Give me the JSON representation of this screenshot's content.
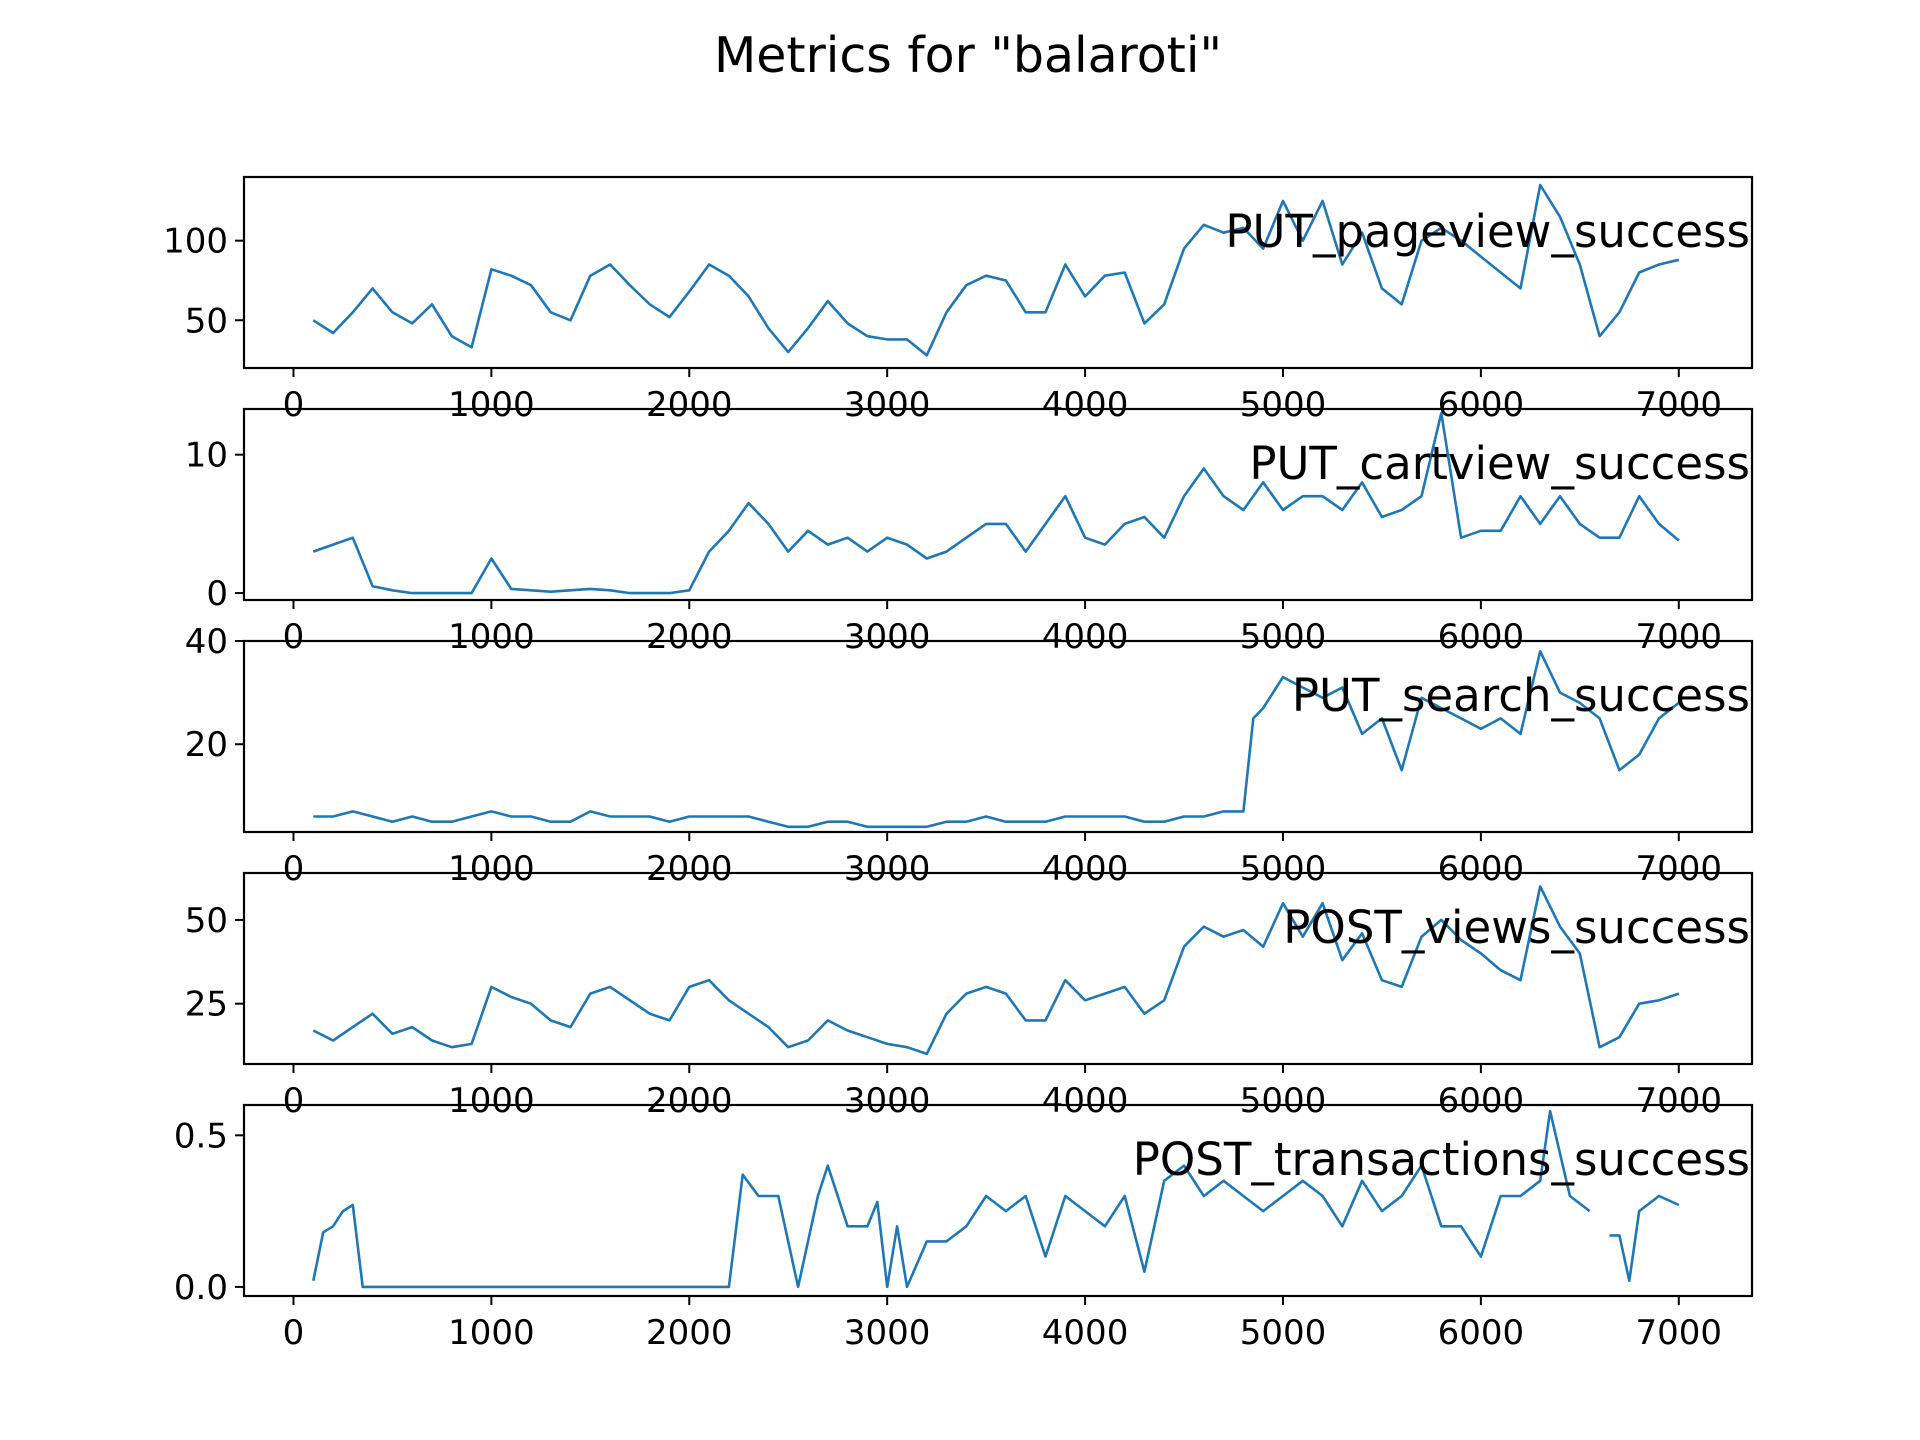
{
  "chart_data": {
    "type": "line",
    "title": "Metrics for \"balaroti\"",
    "line_color": "#1f77b4",
    "xlim": [
      -250,
      7370
    ],
    "xticks": [
      0,
      1000,
      2000,
      3000,
      4000,
      5000,
      6000,
      7000
    ],
    "xtick_labels": [
      "0",
      "1000",
      "2000",
      "3000",
      "4000",
      "5000",
      "6000",
      "7000"
    ],
    "legend_placement": "top-right inside each panel",
    "grid": false,
    "panels": [
      {
        "label": "PUT_pageview_success",
        "ylim": [
          20,
          140
        ],
        "yticks": [
          50,
          100
        ],
        "ytick_labels": [
          "50",
          "100"
        ],
        "x": [
          100,
          200,
          300,
          400,
          500,
          600,
          700,
          800,
          900,
          1000,
          1100,
          1200,
          1300,
          1400,
          1500,
          1600,
          1700,
          1800,
          1900,
          2000,
          2100,
          2200,
          2300,
          2400,
          2500,
          2600,
          2700,
          2800,
          2900,
          3000,
          3100,
          3200,
          3300,
          3400,
          3500,
          3600,
          3700,
          3800,
          3900,
          4000,
          4100,
          4200,
          4300,
          4400,
          4500,
          4600,
          4700,
          4800,
          4900,
          5000,
          5100,
          5200,
          5300,
          5400,
          5500,
          5600,
          5700,
          5800,
          5900,
          6000,
          6100,
          6200,
          6300,
          6400,
          6500,
          6600,
          6700,
          6800,
          6900,
          7000
        ],
        "y": [
          50,
          42,
          55,
          70,
          55,
          48,
          60,
          40,
          33,
          82,
          78,
          72,
          55,
          50,
          78,
          85,
          72,
          60,
          52,
          68,
          85,
          78,
          65,
          45,
          30,
          45,
          62,
          48,
          40,
          38,
          38,
          28,
          55,
          72,
          78,
          75,
          55,
          55,
          85,
          65,
          78,
          80,
          48,
          60,
          95,
          110,
          105,
          108,
          95,
          125,
          100,
          125,
          85,
          105,
          70,
          60,
          100,
          108,
          100,
          90,
          80,
          70,
          135,
          115,
          85,
          40,
          55,
          80,
          85,
          88
        ]
      },
      {
        "label": "PUT_cartview_success",
        "ylim": [
          -0.5,
          13.3
        ],
        "yticks": [
          0,
          10
        ],
        "ytick_labels": [
          "0",
          "10"
        ],
        "x": [
          100,
          200,
          300,
          400,
          500,
          600,
          700,
          800,
          900,
          1000,
          1100,
          1200,
          1300,
          1400,
          1500,
          1600,
          1700,
          1800,
          1900,
          2000,
          2100,
          2200,
          2300,
          2400,
          2500,
          2600,
          2700,
          2800,
          2900,
          3000,
          3100,
          3200,
          3300,
          3400,
          3500,
          3600,
          3700,
          3800,
          3900,
          4000,
          4100,
          4200,
          4300,
          4400,
          4500,
          4600,
          4700,
          4800,
          4900,
          5000,
          5100,
          5200,
          5300,
          5400,
          5500,
          5600,
          5700,
          5800,
          5900,
          6000,
          6100,
          6200,
          6300,
          6400,
          6500,
          6600,
          6700,
          6800,
          6900,
          7000
        ],
        "y": [
          3,
          3.5,
          4,
          0.5,
          0.2,
          0,
          0,
          0,
          0,
          2.5,
          0.3,
          0.2,
          0.1,
          0.2,
          0.3,
          0.2,
          0,
          0,
          0,
          0.2,
          3,
          4.5,
          6.5,
          5,
          3,
          4.5,
          3.5,
          4,
          3,
          4,
          3.5,
          2.5,
          3,
          4,
          5,
          5,
          3,
          5,
          7,
          4,
          3.5,
          5,
          5.5,
          4,
          7,
          9,
          7,
          6,
          8,
          6,
          7,
          7,
          6,
          8,
          5.5,
          6,
          7,
          13,
          4,
          4.5,
          4.5,
          7,
          5,
          7,
          5,
          4,
          4,
          7,
          5,
          3.8
        ]
      },
      {
        "label": "PUT_search_success",
        "ylim": [
          3,
          40
        ],
        "yticks": [
          20,
          40
        ],
        "ytick_labels": [
          "20",
          "40"
        ],
        "x": [
          100,
          200,
          300,
          400,
          500,
          600,
          700,
          800,
          900,
          1000,
          1100,
          1200,
          1300,
          1400,
          1500,
          1600,
          1700,
          1800,
          1900,
          2000,
          2100,
          2200,
          2300,
          2400,
          2500,
          2600,
          2700,
          2800,
          2900,
          3000,
          3100,
          3200,
          3300,
          3400,
          3500,
          3600,
          3700,
          3800,
          3900,
          4000,
          4100,
          4200,
          4300,
          4400,
          4500,
          4600,
          4700,
          4800,
          4850,
          4900,
          5000,
          5100,
          5200,
          5300,
          5400,
          5500,
          5600,
          5700,
          5800,
          5900,
          6000,
          6100,
          6200,
          6300,
          6400,
          6500,
          6600,
          6700,
          6800,
          6900,
          7000
        ],
        "y": [
          6,
          6,
          7,
          6,
          5,
          6,
          5,
          5,
          6,
          7,
          6,
          6,
          5,
          5,
          7,
          6,
          6,
          6,
          5,
          6,
          6,
          6,
          6,
          5,
          4,
          4,
          5,
          5,
          4,
          4,
          4,
          4,
          5,
          5,
          6,
          5,
          5,
          5,
          6,
          6,
          6,
          6,
          5,
          5,
          6,
          6,
          7,
          7,
          25,
          27,
          33,
          31,
          29,
          31,
          22,
          25,
          15,
          29,
          27,
          25,
          23,
          25,
          22,
          38,
          30,
          28,
          25,
          15,
          18,
          25,
          28
        ]
      },
      {
        "label": "POST_views_success",
        "ylim": [
          7,
          64
        ],
        "yticks": [
          25,
          50
        ],
        "ytick_labels": [
          "25",
          "50"
        ],
        "x": [
          100,
          200,
          300,
          400,
          500,
          600,
          700,
          800,
          900,
          1000,
          1100,
          1200,
          1300,
          1400,
          1500,
          1600,
          1700,
          1800,
          1900,
          2000,
          2100,
          2200,
          2300,
          2400,
          2500,
          2600,
          2700,
          2800,
          2900,
          3000,
          3100,
          3200,
          3300,
          3400,
          3500,
          3600,
          3700,
          3800,
          3900,
          4000,
          4100,
          4200,
          4300,
          4400,
          4500,
          4600,
          4700,
          4800,
          4900,
          5000,
          5100,
          5200,
          5300,
          5400,
          5500,
          5600,
          5700,
          5800,
          5900,
          6000,
          6100,
          6200,
          6300,
          6400,
          6500,
          6600,
          6700,
          6800,
          6900,
          7000
        ],
        "y": [
          17,
          14,
          18,
          22,
          16,
          18,
          14,
          12,
          13,
          30,
          27,
          25,
          20,
          18,
          28,
          30,
          26,
          22,
          20,
          30,
          32,
          26,
          22,
          18,
          12,
          14,
          20,
          17,
          15,
          13,
          12,
          10,
          22,
          28,
          30,
          28,
          20,
          20,
          32,
          26,
          28,
          30,
          22,
          26,
          42,
          48,
          45,
          47,
          42,
          55,
          45,
          55,
          38,
          46,
          32,
          30,
          45,
          50,
          44,
          40,
          35,
          32,
          60,
          48,
          40,
          12,
          15,
          25,
          26,
          28
        ]
      },
      {
        "label": "POST_transactions_success",
        "ylim": [
          -0.03,
          0.6
        ],
        "yticks": [
          0.0,
          0.5
        ],
        "ytick_labels": [
          "0.0",
          "0.5"
        ],
        "x": [
          100,
          150,
          200,
          250,
          300,
          350,
          2200,
          2270,
          2350,
          2450,
          2550,
          2650,
          2700,
          2800,
          2900,
          2950,
          3000,
          3050,
          3100,
          3200,
          3300,
          3400,
          3500,
          3600,
          3700,
          3800,
          3900,
          4000,
          4100,
          4200,
          4300,
          4400,
          4500,
          4600,
          4700,
          4800,
          4900,
          5000,
          5100,
          5200,
          5300,
          5400,
          5500,
          5600,
          5700,
          5800,
          5900,
          6000,
          6100,
          6200,
          6300,
          6350,
          6450,
          6550,
          null,
          6650,
          6700,
          6750,
          6800,
          6900,
          7000
        ],
        "y": [
          0.02,
          0.18,
          0.2,
          0.25,
          0.27,
          0,
          0,
          0.37,
          0.3,
          0.3,
          0,
          0.3,
          0.4,
          0.2,
          0.2,
          0.28,
          0,
          0.2,
          0,
          0.15,
          0.15,
          0.2,
          0.3,
          0.25,
          0.3,
          0.1,
          0.3,
          0.25,
          0.2,
          0.3,
          0.05,
          0.35,
          0.4,
          0.3,
          0.35,
          0.3,
          0.25,
          0.3,
          0.35,
          0.3,
          0.2,
          0.35,
          0.25,
          0.3,
          0.4,
          0.2,
          0.2,
          0.1,
          0.3,
          0.3,
          0.35,
          0.58,
          0.3,
          0.25,
          null,
          0.17,
          0.17,
          0.02,
          0.25,
          0.3,
          0.27
        ]
      }
    ]
  }
}
